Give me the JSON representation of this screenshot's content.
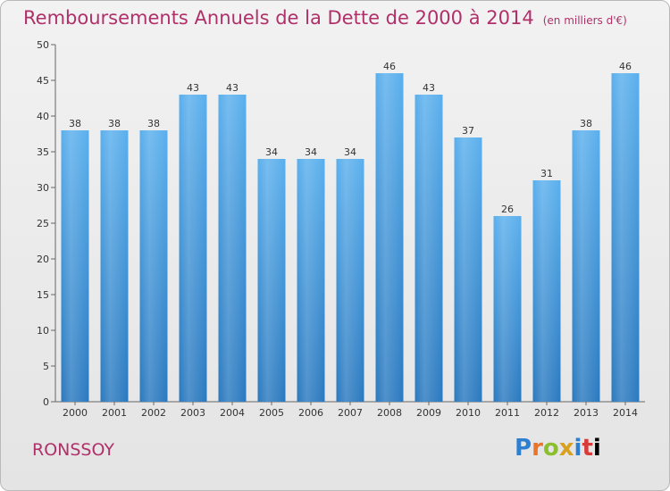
{
  "chart_data": {
    "type": "bar",
    "title": "Remboursements Annuels de la Dette de 2000 à 2014",
    "unit_note": "(en milliers d'€)",
    "categories": [
      "2000",
      "2001",
      "2002",
      "2003",
      "2004",
      "2005",
      "2006",
      "2007",
      "2008",
      "2009",
      "2010",
      "2011",
      "2012",
      "2013",
      "2014"
    ],
    "values": [
      38,
      38,
      38,
      43,
      43,
      34,
      34,
      34,
      46,
      43,
      37,
      26,
      31,
      38,
      46
    ],
    "yticks": [
      0,
      5,
      10,
      15,
      20,
      25,
      30,
      35,
      40,
      45,
      50
    ],
    "ylim": [
      0,
      50
    ],
    "xlabel": "",
    "ylabel": "",
    "grid": false,
    "bar_color": "#4a9ee0"
  },
  "commune": "RONSSOY",
  "logo_text": "Proxiti"
}
